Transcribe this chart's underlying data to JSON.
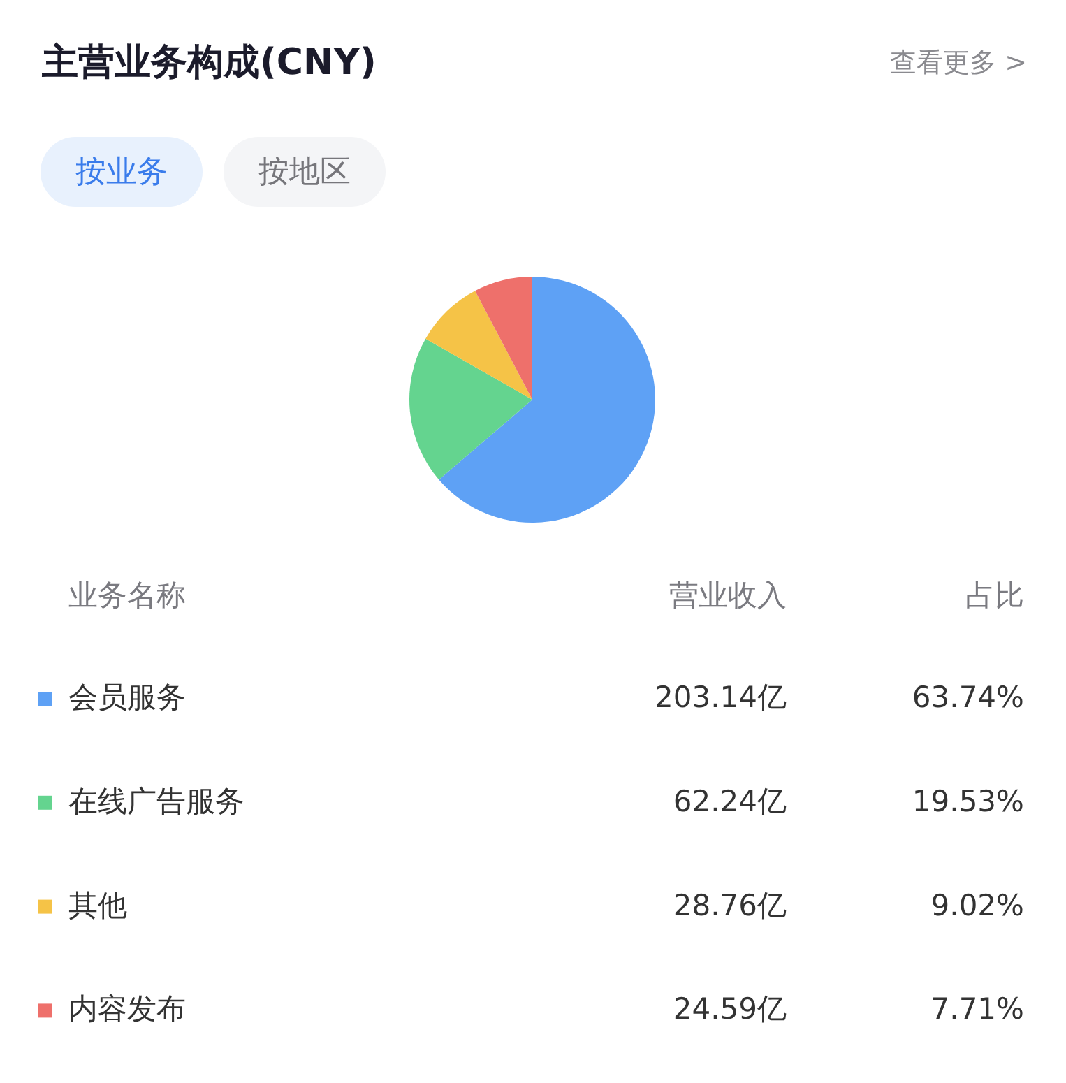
{
  "chart_data": {
    "type": "pie",
    "title": "主营业务构成(CNY)",
    "categories": [
      "会员服务",
      "在线广告服务",
      "其他",
      "内容发布"
    ],
    "values": [
      203.14,
      62.24,
      28.76,
      24.59
    ],
    "colors": [
      "#5ea1f5",
      "#64d48f",
      "#f5c347",
      "#ee706b"
    ],
    "value_labels": [
      "203.14亿",
      "62.24亿",
      "28.76亿",
      "24.59亿"
    ],
    "legend": "bottom",
    "legend_title": "业务名称",
    "annotations": [
      "查看更多 >",
      "按业务",
      "按地区",
      "营业收入",
      "占比",
      "63.74%",
      "19.53%",
      "9.02%",
      "7.71%"
    ]
  }
}
